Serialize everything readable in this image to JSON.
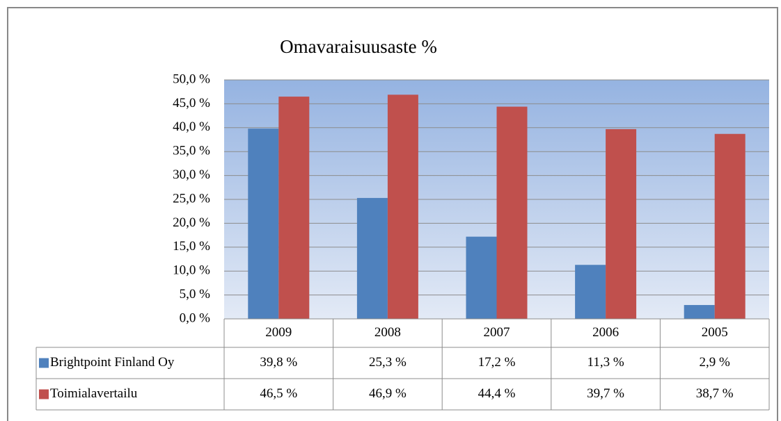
{
  "chart_data": {
    "type": "bar",
    "title": "Omavaraisuusaste %",
    "categories": [
      "2009",
      "2008",
      "2007",
      "2006",
      "2005"
    ],
    "series": [
      {
        "name": "Brightpoint Finland Oy",
        "color": "#4f81bd",
        "values": [
          39.8,
          25.3,
          17.2,
          11.3,
          2.9
        ],
        "value_labels": [
          "39,8 %",
          "25,3 %",
          "17,2 %",
          "11,3 %",
          "2,9 %"
        ]
      },
      {
        "name": "Toimialavertailu",
        "color": "#c0504d",
        "values": [
          46.5,
          46.9,
          44.4,
          39.7,
          38.7
        ],
        "value_labels": [
          "46,5 %",
          "46,9 %",
          "44,4 %",
          "39,7 %",
          "38,7 %"
        ]
      }
    ],
    "ylim": [
      0,
      50
    ],
    "yticks": [
      {
        "value": 0,
        "label": "0,0 %"
      },
      {
        "value": 5,
        "label": "5,0 %"
      },
      {
        "value": 10,
        "label": "10,0 %"
      },
      {
        "value": 15,
        "label": "15,0 %"
      },
      {
        "value": 20,
        "label": "20,0 %"
      },
      {
        "value": 25,
        "label": "25,0 %"
      },
      {
        "value": 30,
        "label": "30,0 %"
      },
      {
        "value": 35,
        "label": "35,0 %"
      },
      {
        "value": 40,
        "label": "40,0 %"
      },
      {
        "value": 45,
        "label": "45,0 %"
      },
      {
        "value": 50,
        "label": "50,0 %"
      }
    ],
    "grid": true
  }
}
